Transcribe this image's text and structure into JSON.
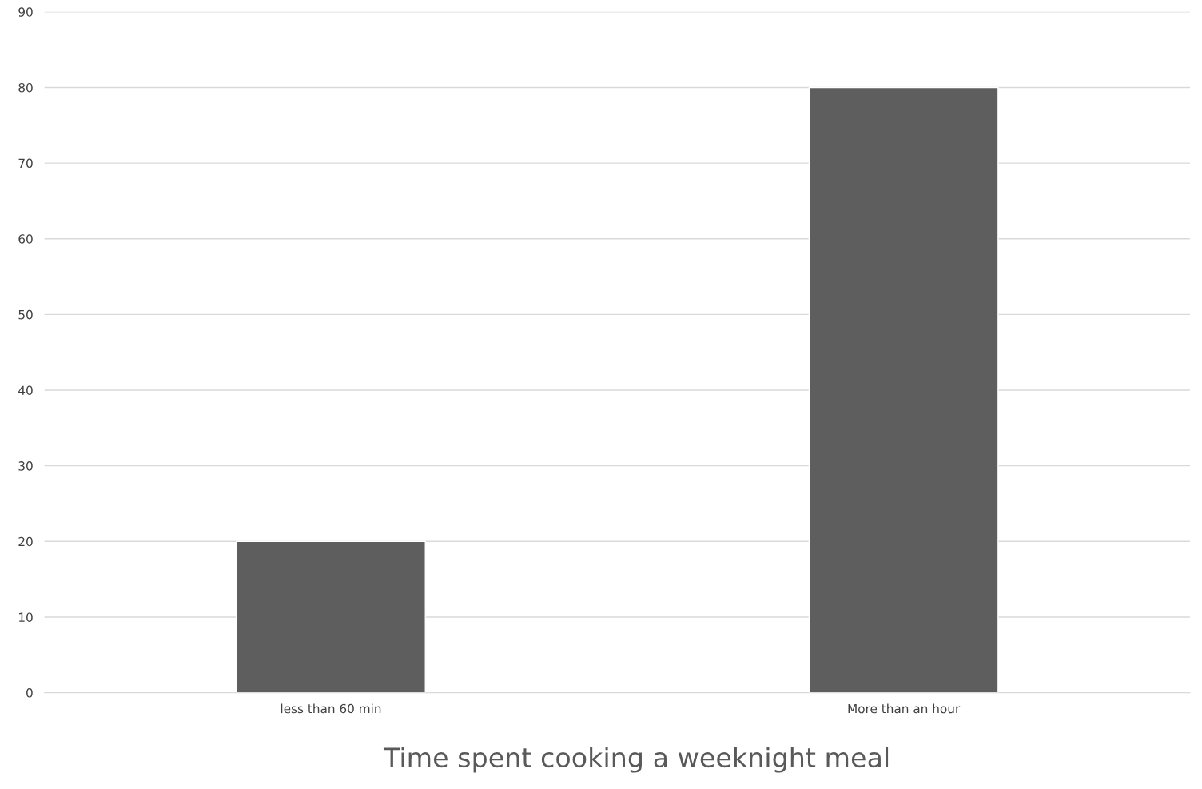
{
  "chart_data": {
    "type": "bar",
    "title": "Time spent cooking a weeknight meal",
    "categories": [
      "less than 60 min",
      "More than an hour"
    ],
    "values": [
      20,
      80
    ],
    "color": "#5e5e5e",
    "ylim": [
      0,
      90
    ],
    "yticks": [
      0,
      10,
      20,
      30,
      40,
      50,
      60,
      70,
      80,
      90
    ],
    "grid": "y"
  }
}
